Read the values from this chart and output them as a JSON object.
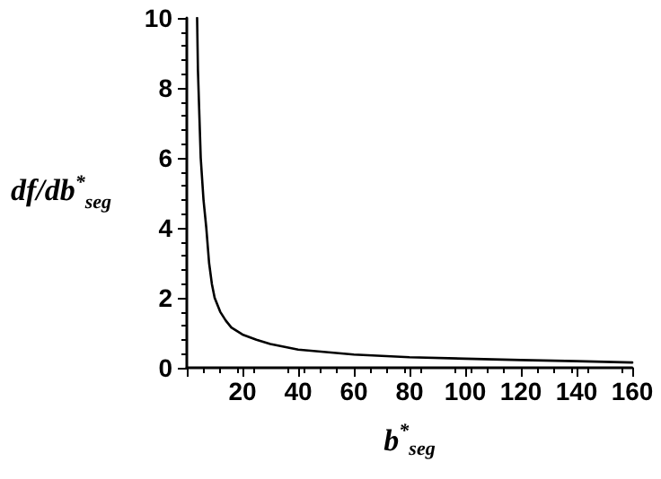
{
  "chart_data": {
    "type": "line",
    "xlabel": "b$^{*}$$_{seg}$",
    "ylabel": "df/db$^{*}$$_{seg}$",
    "xlim": [
      0,
      160
    ],
    "ylim": [
      0,
      10
    ],
    "xticks": [
      {
        "value": 0,
        "label": null
      },
      20,
      40,
      60,
      80,
      100,
      120,
      140,
      160
    ],
    "yticks": [
      0,
      2,
      4,
      6,
      8,
      10
    ],
    "grid": false,
    "marker": "none",
    "line_style": "solid",
    "series": [
      {
        "color": "#000000",
        "x": [
          3.7,
          4,
          5,
          6,
          7,
          8,
          9,
          10,
          12,
          14,
          16,
          20,
          25,
          30,
          40,
          50,
          60,
          80,
          100,
          120,
          140,
          160
        ],
        "values": [
          10,
          8.5,
          6,
          4.8,
          4,
          3,
          2.4,
          2,
          1.6,
          1.35,
          1.15,
          0.95,
          0.8,
          0.68,
          0.52,
          0.45,
          0.38,
          0.3,
          0.26,
          0.22,
          0.19,
          0.15
        ]
      }
    ]
  }
}
